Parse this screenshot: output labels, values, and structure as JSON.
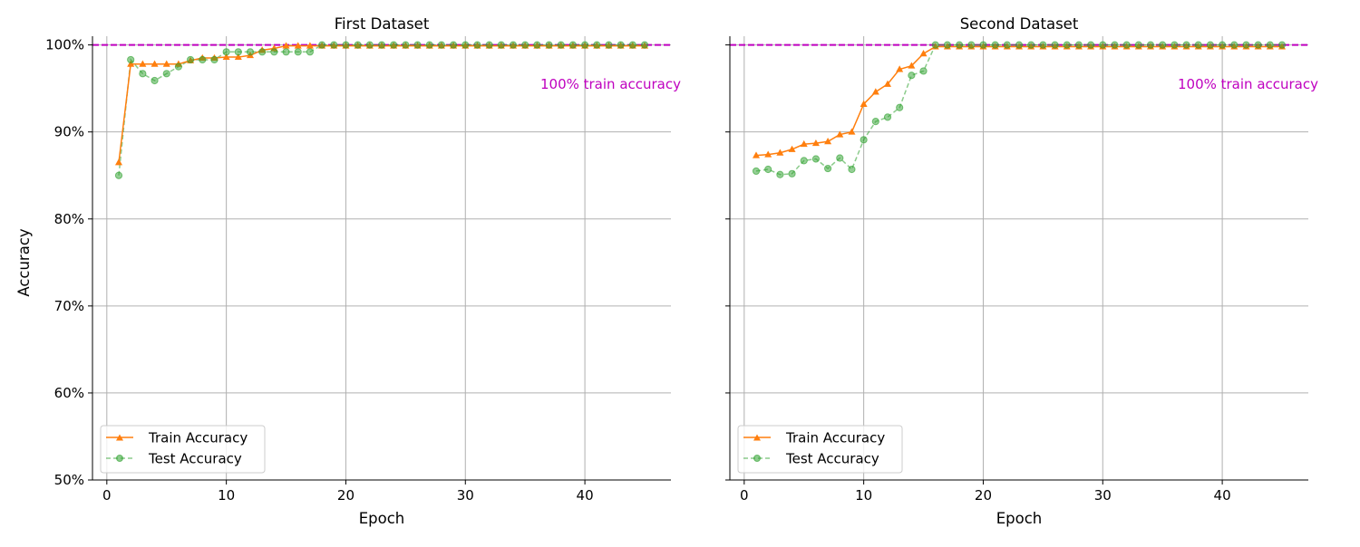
{
  "colors": {
    "train": "#ff7f0e",
    "test": "#2ca02c",
    "reference": "#bf00bf",
    "grid": "#b0b0b0"
  },
  "chart_data": [
    {
      "type": "line",
      "title": "First Dataset",
      "xlabel": "Epoch",
      "ylabel": "Accuracy",
      "xlim": [
        -1.2,
        47.2
      ],
      "ylim": [
        50,
        101
      ],
      "x_ticks": [
        0,
        10,
        20,
        30,
        40
      ],
      "y_ticks": [
        50,
        60,
        70,
        80,
        90,
        100
      ],
      "y_tick_labels": [
        "50%",
        "60%",
        "70%",
        "80%",
        "90%",
        "100%"
      ],
      "grid": true,
      "legend_position": "lower-left",
      "reference_line": {
        "y": 100,
        "style": "dashed",
        "label": "100% train accuracy"
      },
      "x": [
        1,
        2,
        3,
        4,
        5,
        6,
        7,
        8,
        9,
        10,
        11,
        12,
        13,
        14,
        15,
        16,
        17,
        18,
        19,
        20,
        21,
        22,
        23,
        24,
        25,
        26,
        27,
        28,
        29,
        30,
        31,
        32,
        33,
        34,
        35,
        36,
        37,
        38,
        39,
        40,
        41,
        42,
        43,
        44,
        45
      ],
      "series": [
        {
          "name": "Train Accuracy",
          "style": "solid-triangle",
          "values": [
            86.5,
            97.8,
            97.8,
            97.8,
            97.8,
            97.8,
            98.2,
            98.5,
            98.5,
            98.6,
            98.6,
            98.8,
            99.4,
            99.6,
            99.9,
            99.9,
            99.9,
            99.9,
            99.9,
            99.9,
            99.9,
            99.9,
            99.9,
            99.9,
            99.9,
            99.9,
            99.9,
            99.9,
            99.9,
            99.9,
            99.9,
            99.9,
            99.9,
            99.9,
            99.9,
            99.9,
            99.9,
            99.9,
            99.9,
            99.9,
            99.9,
            99.9,
            99.9,
            99.9,
            99.9
          ]
        },
        {
          "name": "Test Accuracy",
          "style": "dashed-circle",
          "values": [
            85.0,
            98.3,
            96.7,
            95.9,
            96.7,
            97.5,
            98.3,
            98.3,
            98.3,
            99.2,
            99.2,
            99.2,
            99.2,
            99.2,
            99.2,
            99.2,
            99.2,
            100,
            100,
            100,
            100,
            100,
            100,
            100,
            100,
            100,
            100,
            100,
            100,
            100,
            100,
            100,
            100,
            100,
            100,
            100,
            100,
            100,
            100,
            100,
            100,
            100,
            100,
            100,
            100
          ]
        }
      ]
    },
    {
      "type": "line",
      "title": "Second Dataset",
      "xlabel": "Epoch",
      "ylabel": "",
      "xlim": [
        -1.2,
        47.2
      ],
      "ylim": [
        50,
        101
      ],
      "x_ticks": [
        0,
        10,
        20,
        30,
        40
      ],
      "y_ticks": [
        50,
        60,
        70,
        80,
        90,
        100
      ],
      "y_tick_labels": [],
      "grid": true,
      "legend_position": "lower-left",
      "reference_line": {
        "y": 100,
        "style": "dashed",
        "label": "100% train accuracy"
      },
      "x": [
        1,
        2,
        3,
        4,
        5,
        6,
        7,
        8,
        9,
        10,
        11,
        12,
        13,
        14,
        15,
        16,
        17,
        18,
        19,
        20,
        21,
        22,
        23,
        24,
        25,
        26,
        27,
        28,
        29,
        30,
        31,
        32,
        33,
        34,
        35,
        36,
        37,
        38,
        39,
        40,
        41,
        42,
        43,
        44,
        45
      ],
      "series": [
        {
          "name": "Train Accuracy",
          "style": "solid-triangle",
          "values": [
            87.3,
            87.4,
            87.6,
            88.0,
            88.6,
            88.7,
            88.9,
            89.7,
            90.0,
            93.2,
            94.6,
            95.5,
            97.2,
            97.6,
            99.0,
            99.8,
            99.8,
            99.8,
            99.8,
            99.8,
            99.8,
            99.8,
            99.8,
            99.8,
            99.8,
            99.8,
            99.8,
            99.8,
            99.8,
            99.8,
            99.8,
            99.8,
            99.8,
            99.8,
            99.8,
            99.8,
            99.8,
            99.8,
            99.8,
            99.8,
            99.8,
            99.8,
            99.8,
            99.8,
            99.8
          ]
        },
        {
          "name": "Test Accuracy",
          "style": "dashed-circle",
          "values": [
            85.5,
            85.7,
            85.1,
            85.2,
            86.7,
            86.9,
            85.8,
            87.0,
            85.7,
            89.1,
            91.2,
            91.7,
            92.8,
            96.5,
            97.0,
            100,
            100,
            100,
            100,
            100,
            100,
            100,
            100,
            100,
            100,
            100,
            100,
            100,
            100,
            100,
            100,
            100,
            100,
            100,
            100,
            100,
            100,
            100,
            100,
            100,
            100,
            100,
            100,
            100,
            100
          ]
        }
      ]
    }
  ]
}
